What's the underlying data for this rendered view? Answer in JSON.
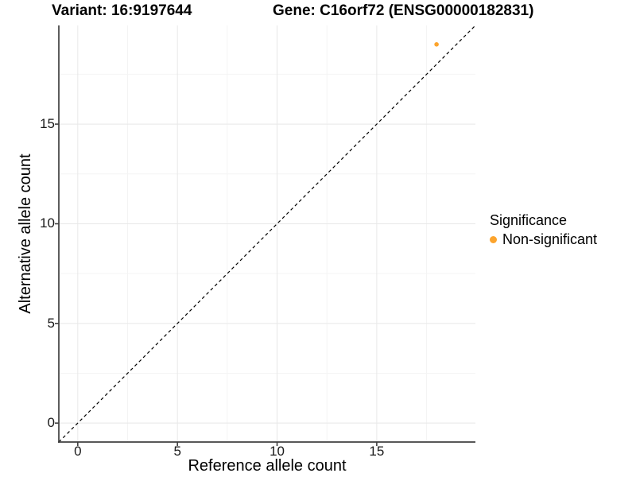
{
  "header": {
    "variant_title": "Variant: 16:9197644",
    "gene_title": "Gene: C16orf72 (ENSG00000182831)"
  },
  "chart_data": {
    "type": "scatter",
    "xlabel": "Reference allele count",
    "ylabel": "Alternative allele count",
    "xlim": [
      0,
      19
    ],
    "ylim": [
      0,
      19
    ],
    "expansion": 0.05,
    "major_ticks": [
      0,
      5,
      10,
      15
    ],
    "minor_ticks": [
      2.5,
      7.5,
      12.5,
      17.5
    ],
    "grid": "major and minor, light gray, on white panel",
    "axis_lines": "left and bottom only",
    "points": [
      {
        "x": 18,
        "y": 19,
        "significance": "Non-significant"
      }
    ],
    "reference_line": {
      "kind": "identity y=x",
      "style": "dashed",
      "color": "#000000"
    },
    "legend": {
      "title": "Significance",
      "position": "right",
      "entries": [
        {
          "label": "Non-significant",
          "color": "#FCA42D"
        }
      ]
    },
    "colors": {
      "point": "#FCA42D",
      "grid_major": "#e8e8e8",
      "grid_minor": "#f4f4f4",
      "axis_line": "#404040",
      "tick_text": "#1a1a1a",
      "background": "#ffffff"
    }
  }
}
